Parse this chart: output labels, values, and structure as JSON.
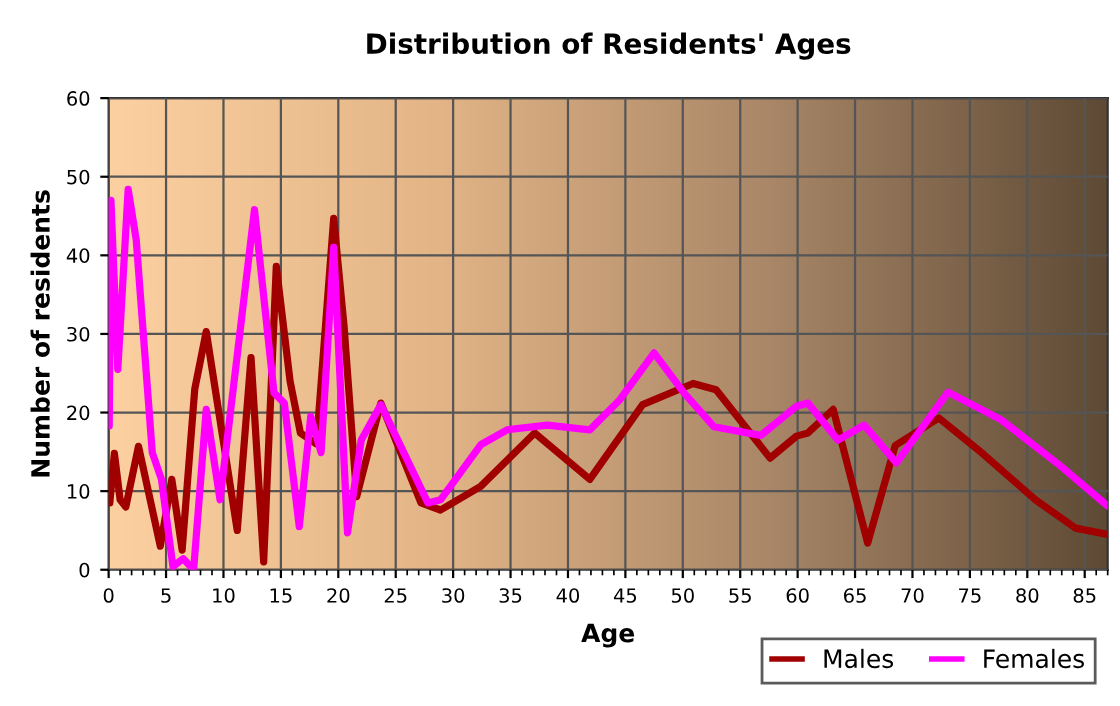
{
  "chart_data": {
    "type": "line",
    "title": "Distribution of Residents' Ages",
    "xlabel": "Age",
    "ylabel": "Number of residents",
    "xlim": [
      0,
      87
    ],
    "xticks": [
      0,
      5,
      10,
      15,
      20,
      25,
      30,
      35,
      40,
      45,
      50,
      55,
      60,
      65,
      70,
      75,
      80,
      85
    ],
    "ylim": [
      0,
      60
    ],
    "yticks": [
      0,
      10,
      20,
      30,
      40,
      50,
      60
    ],
    "grid": true,
    "legend": "bottom right",
    "marker": "none",
    "line_style": "solid",
    "series": [
      {
        "name": "Males",
        "color": "#a00000",
        "x": [
          0.1,
          0.5,
          1,
          1.5,
          2.6,
          4.5,
          5.5,
          6.4,
          7.5,
          8.5,
          11.2,
          12.4,
          13.5,
          14.6,
          15.8,
          16.7,
          18.1,
          19.6,
          20.5,
          21.6,
          23.7,
          27.2,
          28.9,
          32.4,
          37.1,
          41.9,
          46.5,
          50.9,
          52.9,
          57.6,
          59.9,
          60.9,
          63.1,
          66.1,
          68.5,
          72.3,
          76.1,
          80.7,
          84.2,
          87
        ],
        "values": [
          8.5,
          14.8,
          8.9,
          8,
          15.7,
          3,
          11.5,
          2.5,
          23,
          30.3,
          5,
          27,
          1,
          38.6,
          24,
          17.4,
          16,
          44.7,
          31,
          9.3,
          21.2,
          8.5,
          7.6,
          10.6,
          17.4,
          11.5,
          21,
          23.7,
          22.9,
          14.2,
          17,
          17.4,
          20.4,
          3.4,
          15.8,
          19.3,
          14.8,
          8.9,
          5.3,
          4.5
        ]
      },
      {
        "name": "Females",
        "color": "#ff00ff",
        "x": [
          0.05,
          0.2,
          0.8,
          1.7,
          2.4,
          3.8,
          4.6,
          5.6,
          6.5,
          7.4,
          8.5,
          9.7,
          11.5,
          12.7,
          14.4,
          15.3,
          16.6,
          17.6,
          18.5,
          19.6,
          20.8,
          22,
          23.7,
          27.8,
          28.9,
          32.4,
          34.7,
          38.2,
          41.9,
          44.5,
          47.5,
          50.1,
          52.7,
          56.8,
          59.9,
          60.9,
          63.5,
          65.8,
          68.6,
          73.1,
          77.7,
          82.9,
          87
        ],
        "values": [
          18.3,
          47,
          25.5,
          48.4,
          42,
          14.9,
          11.5,
          0.4,
          1.4,
          0,
          20.4,
          8.9,
          31,
          45.8,
          22.5,
          21.2,
          5.5,
          19.5,
          14.9,
          41,
          4.7,
          16.5,
          21,
          8.5,
          8.9,
          15.9,
          17.8,
          18.4,
          17.8,
          21.6,
          27.6,
          22.5,
          18.2,
          17.1,
          20.8,
          21.2,
          16.5,
          18.4,
          13.6,
          22.6,
          19.1,
          13.2,
          8.1
        ]
      }
    ]
  }
}
